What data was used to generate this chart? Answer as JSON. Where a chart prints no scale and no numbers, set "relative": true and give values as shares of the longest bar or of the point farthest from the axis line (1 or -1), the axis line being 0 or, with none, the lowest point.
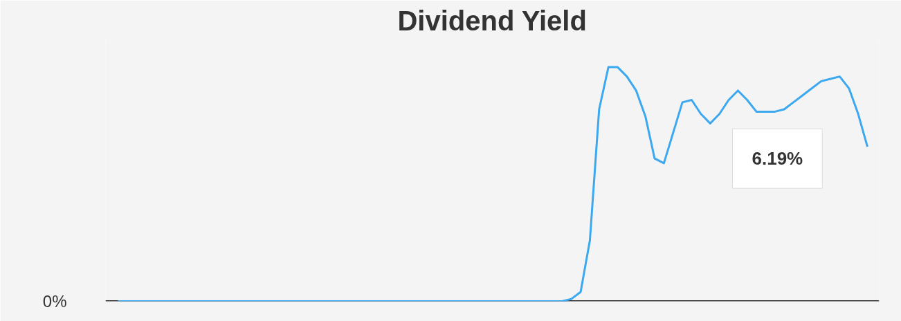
{
  "chart_data": {
    "type": "line",
    "title": "Dividend Yield",
    "relative": true,
    "categories": [
      null,
      null,
      null,
      null,
      null,
      null,
      null,
      null,
      null,
      null,
      null,
      null,
      null,
      null,
      null,
      null,
      null,
      null,
      null,
      null,
      null,
      null,
      null,
      null,
      null,
      null,
      null,
      null,
      null,
      null,
      null,
      null,
      null,
      null,
      null,
      null,
      null,
      null,
      null,
      null,
      null,
      null,
      null,
      null,
      null,
      null,
      null,
      null,
      null,
      null,
      null,
      null,
      null,
      null,
      null,
      null,
      null,
      null,
      null,
      null,
      null,
      null,
      null,
      null,
      null,
      null,
      null,
      null,
      null,
      null,
      null,
      null,
      null,
      null,
      null,
      null,
      null,
      null,
      null,
      null,
      null,
      null
    ],
    "series": [
      {
        "color": "#3ba8f0",
        "values": [
          0,
          0,
          0,
          0,
          0,
          0,
          0,
          0,
          0,
          0,
          0,
          0,
          0,
          0,
          0,
          0,
          0,
          0,
          0,
          0,
          0,
          0,
          0,
          0,
          0,
          0,
          0,
          0,
          0,
          0,
          0,
          0,
          0,
          0,
          0,
          0,
          0,
          0,
          0,
          0,
          0,
          0,
          0,
          0,
          0,
          0,
          0,
          0,
          0,
          0.01,
          0.04,
          0.26,
          0.82,
          1,
          1,
          0.96,
          0.9,
          0.79,
          0.61,
          0.59,
          0.72,
          0.85,
          0.86,
          0.8,
          0.76,
          0.8,
          0.86,
          0.9,
          0.86,
          0.81,
          0.81,
          0.81,
          0.82,
          0.85,
          0.88,
          0.91,
          0.94,
          0.95,
          0.96,
          0.91,
          0.8,
          0.66
        ]
      }
    ],
    "grid": false,
    "marker": "none",
    "line_style": "solid",
    "annotations": [
      "0%",
      "6.19%"
    ]
  }
}
